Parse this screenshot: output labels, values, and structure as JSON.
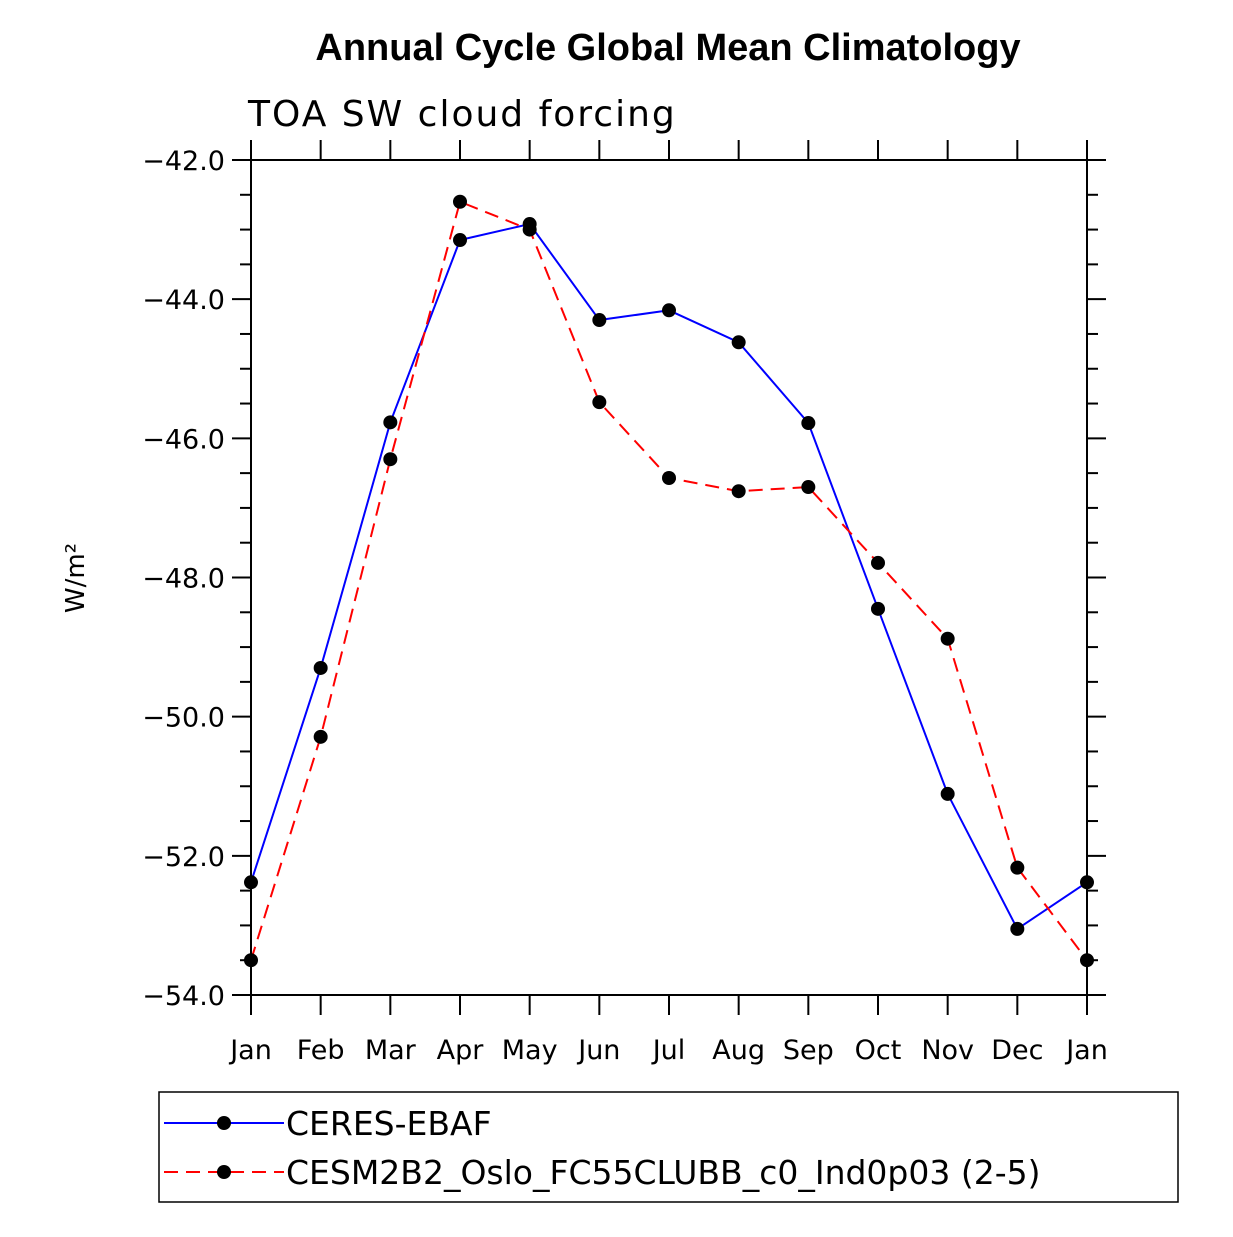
{
  "chart_data": {
    "type": "line",
    "title": "Annual Cycle Global Mean Climatology",
    "subtitle": "TOA SW cloud forcing",
    "xlabel": "",
    "ylabel": "W/m²",
    "ylim": [
      -54.0,
      -42.0
    ],
    "yticks": [
      "-42.0",
      "-44.0",
      "-46.0",
      "-48.0",
      "-50.0",
      "-52.0",
      "-54.0"
    ],
    "yticks_values": [
      -42,
      -44,
      -46,
      -48,
      -50,
      -52,
      -54
    ],
    "categories": [
      "Jan",
      "Feb",
      "Mar",
      "Apr",
      "May",
      "Jun",
      "Jul",
      "Aug",
      "Sep",
      "Oct",
      "Nov",
      "Dec",
      "Jan"
    ],
    "grid": false,
    "legend_position": "bottom",
    "series": [
      {
        "name": "CERES-EBAF",
        "color": "#0000ff",
        "dash": "solid",
        "values": [
          -52.38,
          -49.3,
          -45.77,
          -43.15,
          -42.92,
          -44.3,
          -44.16,
          -44.62,
          -45.78,
          -48.45,
          -51.11,
          -53.05,
          -52.38
        ]
      },
      {
        "name": "CESM2B2_Oslo_FC55CLUBB_c0_Ind0p03 (2-5)",
        "color": "#ff0000",
        "dash": "dashed",
        "values": [
          -53.5,
          -50.29,
          -46.3,
          -42.6,
          -43.0,
          -45.48,
          -46.57,
          -46.76,
          -46.7,
          -47.79,
          -48.88,
          -52.17,
          -53.5
        ]
      }
    ]
  }
}
